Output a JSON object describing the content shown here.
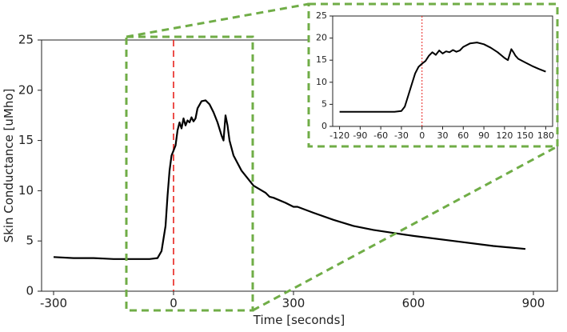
{
  "chart_data": [
    {
      "type": "line",
      "title": "",
      "xlabel": "Time [seconds]",
      "ylabel": "Skin Conductance [uMho]",
      "xlim": [
        -330,
        960
      ],
      "ylim": [
        0,
        25
      ],
      "x_ticks": [
        -300,
        0,
        300,
        600,
        900
      ],
      "x_tick_labels": [
        "-300",
        "0",
        "300",
        "600",
        "900"
      ],
      "y_ticks": [
        0,
        5,
        10,
        15,
        20,
        25
      ],
      "y_tick_labels": [
        "0",
        "5",
        "10",
        "15",
        "20",
        "25"
      ],
      "grid": false,
      "event_marker_x": 0,
      "series": [
        {
          "color": "#000000",
          "x": [
            -300,
            -250,
            -200,
            -150,
            -100,
            -60,
            -40,
            -30,
            -20,
            -15,
            -10,
            -5,
            0,
            5,
            10,
            15,
            20,
            25,
            30,
            35,
            40,
            45,
            50,
            55,
            60,
            70,
            80,
            90,
            100,
            110,
            120,
            125,
            130,
            135,
            140,
            150,
            170,
            200,
            230,
            240,
            250,
            280,
            300,
            310,
            350,
            400,
            450,
            500,
            550,
            600,
            700,
            800,
            880
          ],
          "y": [
            3.4,
            3.3,
            3.3,
            3.2,
            3.2,
            3.2,
            3.3,
            4.0,
            6.5,
            9.5,
            12.0,
            13.5,
            14.0,
            14.5,
            16.0,
            16.8,
            16.2,
            17.2,
            16.5,
            17.0,
            16.8,
            17.3,
            16.9,
            17.2,
            18.2,
            18.9,
            19.0,
            18.6,
            17.8,
            16.8,
            15.5,
            15.0,
            17.5,
            16.5,
            15.0,
            13.5,
            12.0,
            10.5,
            9.8,
            9.4,
            9.3,
            8.8,
            8.4,
            8.4,
            7.8,
            7.1,
            6.5,
            6.1,
            5.8,
            5.5,
            5.0,
            4.5,
            4.2
          ]
        }
      ]
    },
    {
      "type": "line",
      "title": "",
      "xlabel": "",
      "ylabel": "",
      "xlim": [
        -130,
        190
      ],
      "ylim": [
        0,
        25
      ],
      "x_ticks": [
        -120,
        -90,
        -60,
        -30,
        0,
        30,
        60,
        90,
        120,
        150,
        180
      ],
      "x_tick_labels": [
        "-120",
        "-90",
        "-60",
        "-30",
        "0",
        "30",
        "60",
        "90",
        "120",
        "150",
        "180"
      ],
      "y_ticks": [
        0,
        5,
        10,
        15,
        20,
        25
      ],
      "y_tick_labels": [
        "0",
        "5",
        "10",
        "15",
        "20",
        "25"
      ],
      "grid": false,
      "event_marker_x": 0,
      "series": [
        {
          "color": "#000000",
          "x": [
            -120,
            -100,
            -80,
            -60,
            -40,
            -30,
            -25,
            -20,
            -15,
            -10,
            -5,
            0,
            5,
            10,
            15,
            20,
            25,
            30,
            35,
            40,
            45,
            50,
            55,
            60,
            70,
            80,
            90,
            100,
            110,
            120,
            125,
            130,
            133,
            136,
            140,
            150,
            160,
            170,
            180
          ],
          "y": [
            3.3,
            3.3,
            3.3,
            3.3,
            3.3,
            3.5,
            4.5,
            7.0,
            9.5,
            12.0,
            13.5,
            14.2,
            14.8,
            16.0,
            16.8,
            16.2,
            17.2,
            16.5,
            17.0,
            16.8,
            17.3,
            16.9,
            17.2,
            18.0,
            18.8,
            19.0,
            18.6,
            17.8,
            16.8,
            15.5,
            15.0,
            17.5,
            16.8,
            16.0,
            15.3,
            14.5,
            13.7,
            13.0,
            12.4
          ]
        }
      ]
    }
  ]
}
